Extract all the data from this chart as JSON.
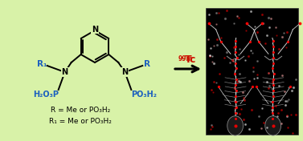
{
  "background_color": "#cef0a0",
  "blue_color": "#1a5fbf",
  "red_color": "#cc1100",
  "black_color": "#111111",
  "r_label": "R",
  "r1_label": "R₁",
  "phosphonate_left": "H₂O₃P",
  "phosphonate_right": "PO₃H₂",
  "text_r": "R = Me or PO₃H₂",
  "text_r1": "R₁ = Me or PO₃H₂",
  "tc_superscript": "99m",
  "tc_label": "Tc"
}
